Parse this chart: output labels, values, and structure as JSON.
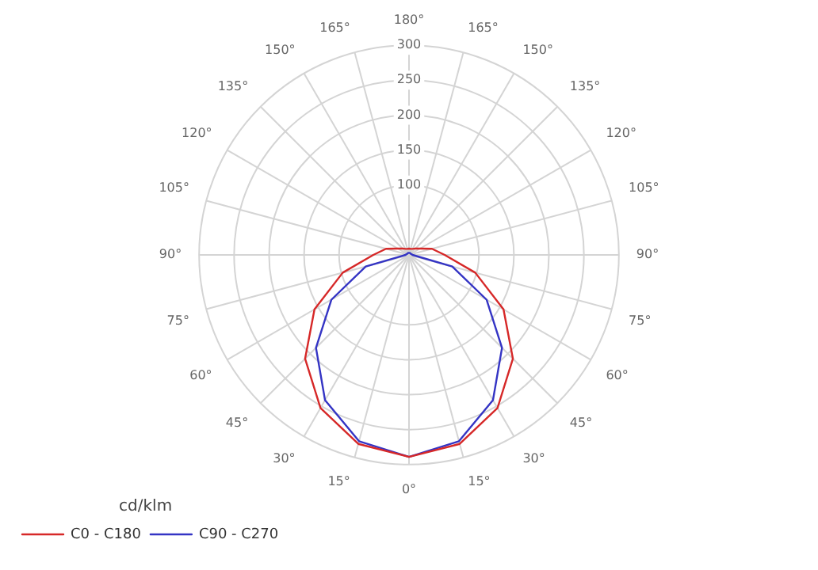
{
  "chart_data": {
    "type": "radar",
    "legend_title": "cd/klm",
    "categories": [
      "180°",
      "165°",
      "150°",
      "135°",
      "120°",
      "105°",
      "90°",
      "75°",
      "60°",
      "45°",
      "30°",
      "15°",
      "0°",
      "15°",
      "30°",
      "45°",
      "60°",
      "75°",
      "90°",
      "105°",
      "120°",
      "135°",
      "150°",
      "165°"
    ],
    "series": [
      {
        "name": "C0 - C180",
        "color": "#d62828",
        "values": [
          9,
          9,
          10,
          13,
          18,
          34,
          51,
          98,
          156,
          210,
          253,
          280,
          289,
          280,
          253,
          210,
          156,
          98,
          51,
          34,
          18,
          13,
          10,
          9
        ]
      },
      {
        "name": "C90 - C270",
        "color": "#3434c4",
        "values": [
          3,
          3,
          3,
          3,
          3,
          4,
          5,
          64,
          128,
          188,
          240,
          276,
          289,
          276,
          240,
          188,
          128,
          64,
          5,
          4,
          3,
          3,
          3,
          3
        ]
      }
    ],
    "ylim": [
      0,
      300
    ],
    "yticks": [
      100,
      150,
      200,
      250,
      300
    ],
    "grid": true,
    "legend": "bottom left",
    "marker": "none"
  }
}
